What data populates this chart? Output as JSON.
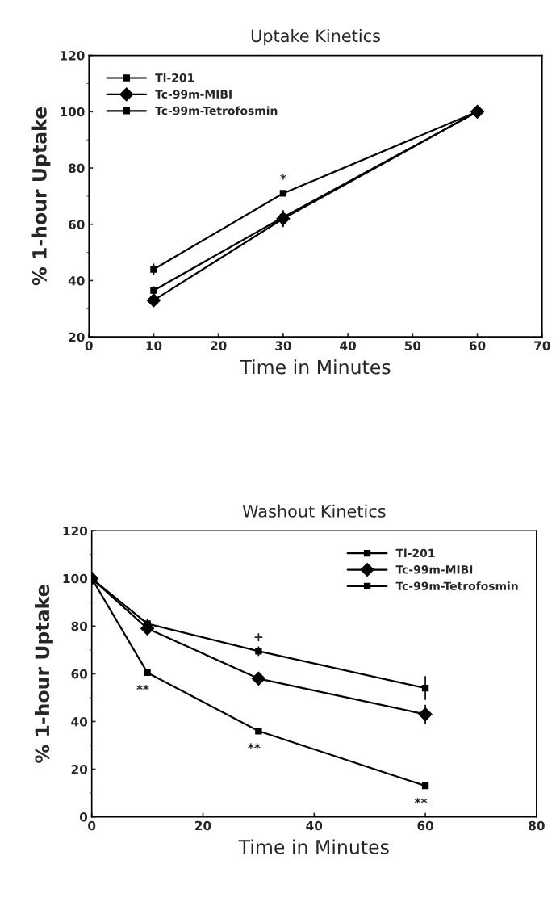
{
  "chart_data": [
    {
      "type": "line",
      "title": "Uptake Kinetics",
      "xlabel": "Time in Minutes",
      "ylabel": "% 1-hour Uptake",
      "x": [
        10,
        30,
        60
      ],
      "xlim": [
        0,
        70
      ],
      "xticks": [
        0,
        10,
        20,
        30,
        40,
        50,
        60,
        70
      ],
      "ylim": [
        20,
        120
      ],
      "yticks": [
        20,
        40,
        60,
        80,
        100,
        120
      ],
      "legend": "top left",
      "grid": false,
      "series": [
        {
          "name": "Tl-201",
          "color": "#000000",
          "marker": "square",
          "values": [
            44,
            71,
            100
          ],
          "errors": [
            2,
            null,
            null
          ]
        },
        {
          "name": "Tc-99m-MIBI",
          "color": "#000000",
          "marker": "diamond",
          "values": [
            33,
            62,
            100
          ],
          "errors": [
            1.5,
            3,
            null
          ]
        },
        {
          "name": "Tc-99m-Tetrofosmin",
          "color": "#000000",
          "marker": "square",
          "values": [
            36.5,
            62.5,
            100
          ],
          "errors": [
            1.5,
            2,
            null
          ]
        }
      ],
      "annotations": [
        {
          "text": "*",
          "x": 30,
          "y": 71
        }
      ]
    },
    {
      "type": "line",
      "title": "Washout Kinetics",
      "xlabel": "Time in Minutes",
      "ylabel": "% 1-hour Uptake",
      "x": [
        0,
        10,
        30,
        60
      ],
      "xlim": [
        0,
        80
      ],
      "xticks": [
        0,
        20,
        40,
        60,
        80
      ],
      "ylim": [
        0,
        120
      ],
      "yticks": [
        0,
        20,
        40,
        60,
        80,
        100,
        120
      ],
      "legend": "top right",
      "grid": false,
      "series": [
        {
          "name": "Tl-201",
          "color": "#000000",
          "marker": "square",
          "values": [
            100,
            60.5,
            36,
            13
          ],
          "errors": [
            null,
            null,
            null,
            null
          ]
        },
        {
          "name": "Tc-99m-MIBI",
          "color": "#000000",
          "marker": "diamond",
          "values": [
            100,
            79,
            58,
            43
          ],
          "errors": [
            null,
            2,
            2,
            4
          ]
        },
        {
          "name": "Tc-99m-Tetrofosmin",
          "color": "#000000",
          "marker": "square",
          "values": [
            100,
            81,
            69.5,
            54
          ],
          "errors": [
            null,
            2,
            2,
            5
          ]
        }
      ],
      "annotations": [
        {
          "text": "**",
          "x": 10,
          "y": 60.5
        },
        {
          "text": "+",
          "x": 30,
          "y": 69.5
        },
        {
          "text": "**",
          "x": 30,
          "y": 36
        },
        {
          "text": "**",
          "x": 60,
          "y": 13
        }
      ]
    }
  ]
}
